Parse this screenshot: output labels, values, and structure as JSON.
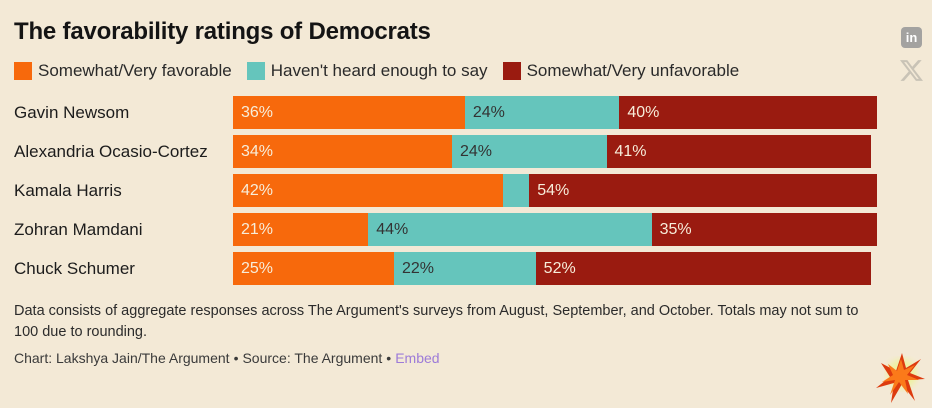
{
  "header": {
    "title": "The favorability ratings of Democrats"
  },
  "colors": {
    "background": "#f3e9d6",
    "favorable": "#f7690c",
    "neutral": "#65c5bc",
    "unfavorable": "#9a1b10",
    "bar_label_light": "#f7edda",
    "bar_label_dark": "#333333",
    "embed_link": "#9d7bd8"
  },
  "icons": {
    "linkedin_share": "in",
    "x_share": "x-logo",
    "logo": "argument-starburst"
  },
  "chart_data": {
    "type": "bar",
    "stacked": true,
    "orientation": "horizontal",
    "title": "The favorability ratings of Democrats",
    "xlim": [
      0,
      100
    ],
    "grid": false,
    "legend_position": "top",
    "categories": [
      "Gavin Newsom",
      "Alexandria Ocasio-Cortez",
      "Kamala Harris",
      "Zohran Mamdani",
      "Chuck Schumer"
    ],
    "series": [
      {
        "name": "Somewhat/Very favorable",
        "color": "#f7690c",
        "label_color": "#f7edda",
        "values": [
          36,
          34,
          42,
          21,
          25
        ],
        "labels": [
          "36%",
          "34%",
          "42%",
          "21%",
          "25%"
        ]
      },
      {
        "name": "Haven't heard enough to say",
        "color": "#65c5bc",
        "label_color": "#333333",
        "values": [
          24,
          24,
          4,
          44,
          22
        ],
        "labels": [
          "24%",
          "24%",
          "",
          "44%",
          "22%"
        ]
      },
      {
        "name": "Somewhat/Very unfavorable",
        "color": "#9a1b10",
        "label_color": "#f7edda",
        "values": [
          40,
          41,
          54,
          35,
          52
        ],
        "labels": [
          "40%",
          "41%",
          "54%",
          "35%",
          "52%"
        ]
      }
    ]
  },
  "footer": {
    "note": "Data consists of aggregate responses across The Argument's surveys from August, September, and October. Totals may not sum to 100 due to rounding.",
    "credit_chart": "Chart: Lakshya Jain/The Argument",
    "credit_source": "Source: The Argument",
    "separator": "•",
    "embed_label": "Embed"
  }
}
